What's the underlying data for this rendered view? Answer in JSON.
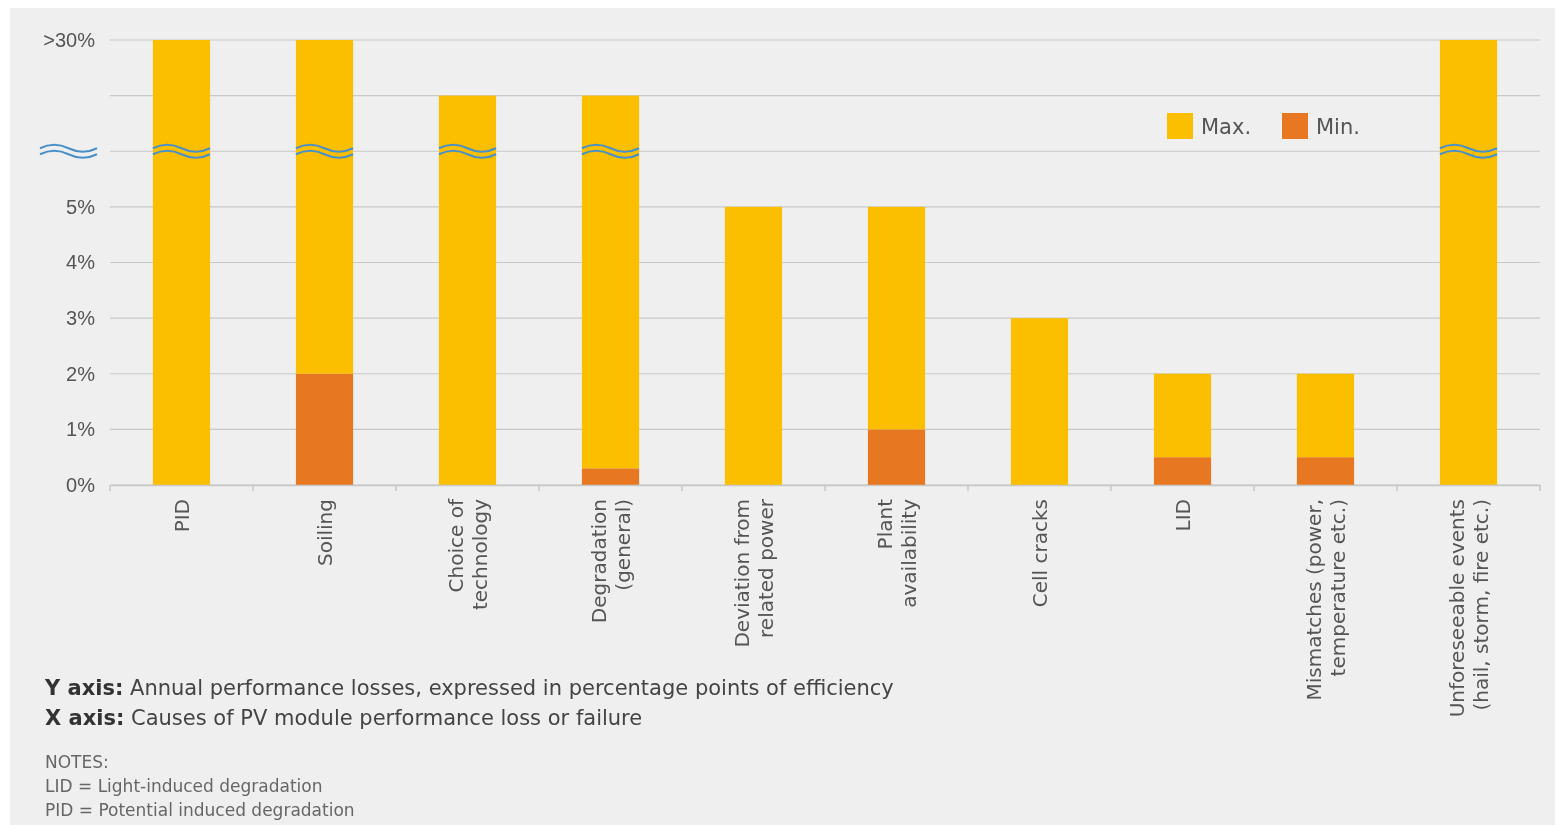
{
  "chart_data": {
    "type": "bar",
    "stacked": true,
    "categories": [
      "PID",
      "Soiling",
      "Choice of\ntechnology",
      "Degradation\n(general)",
      "Deviation from\nrelated power",
      "Plant\navailability",
      "Cell cracks",
      "LID",
      "Mismatches (power,\ntemperature etc.)",
      "Unforeseeable events\n(hail, storm, fire etc.)"
    ],
    "series": [
      {
        "name": "Min.",
        "color": "#e87722",
        "values": [
          0,
          2,
          0,
          0.3,
          0,
          1,
          0,
          0.5,
          0.5,
          0
        ]
      },
      {
        "name": "Max.",
        "color": "#fbbf00",
        "values": [
          8,
          6,
          7,
          6.7,
          5,
          4,
          3,
          1.5,
          1.5,
          8
        ]
      }
    ],
    "ylim": [
      0,
      8
    ],
    "yticks": [
      {
        "value": 0,
        "label": "0%"
      },
      {
        "value": 1,
        "label": "1%"
      },
      {
        "value": 2,
        "label": "2%"
      },
      {
        "value": 3,
        "label": "3%"
      },
      {
        "value": 4,
        "label": "4%"
      },
      {
        "value": 5,
        "label": "5%"
      },
      {
        "value": 6,
        "label": null
      },
      {
        "value": 7,
        "label": null
      },
      {
        "value": 8,
        "label": ">30%"
      }
    ],
    "grid": "y",
    "legend": "top right",
    "annotations": [
      "Y axis: Annual performance losses, expressed in percentage points of efficiency",
      "X axis: Causes of PV module performance loss or failure",
      "NOTES:",
      "LID = Light-induced degradation",
      "PID = Potential induced degradation"
    ]
  }
}
